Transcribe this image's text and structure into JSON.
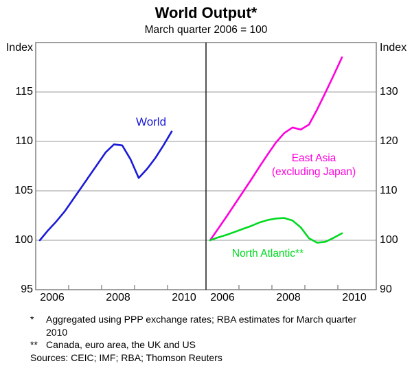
{
  "title": "World Output*",
  "subtitle": "March quarter 2006 = 100",
  "chart_data": {
    "type": "line",
    "title": "World Output*",
    "subtitle": "March quarter 2006 = 100",
    "x_note": "quarterly data, March quarter 2006 to March quarter 2010",
    "x_years": [
      2006.125,
      2006.375,
      2006.625,
      2006.875,
      2007.125,
      2007.375,
      2007.625,
      2007.875,
      2008.125,
      2008.375,
      2008.625,
      2008.875,
      2009.125,
      2009.375,
      2009.625,
      2009.875,
      2010.125
    ],
    "xlim": [
      2006,
      2011.17
    ],
    "grid": true,
    "year_ticks": [
      2007,
      2008,
      2009,
      2010
    ],
    "x_tick_labels": [
      "2006",
      "2008",
      "2010"
    ],
    "x_tick_label_positions": [
      2006.5,
      2008.5,
      2010.5
    ],
    "panels": [
      {
        "side": "left",
        "ylabel": "Index",
        "ylim": [
          95,
          120
        ],
        "yticks": [
          95,
          100,
          105,
          110,
          115
        ],
        "series": [
          {
            "name": "World",
            "slug": "world",
            "color": "#1a1ad9",
            "values": [
              100.0,
              101.0,
              101.9,
              102.9,
              104.1,
              105.3,
              106.5,
              107.7,
              108.9,
              109.7,
              109.6,
              108.2,
              106.3,
              107.2,
              108.3,
              109.6,
              111.0
            ]
          }
        ]
      },
      {
        "side": "right",
        "ylabel": "Index",
        "ylim": [
          90,
          140
        ],
        "yticks": [
          90,
          100,
          110,
          120,
          130
        ],
        "series": [
          {
            "name": "East Asia (excluding Japan)",
            "slug": "east-asia",
            "label_lines": [
              "East Asia",
              "(excluding Japan)"
            ],
            "color": "#ff00dd",
            "values": [
              100.0,
              102.4,
              104.8,
              107.3,
              109.8,
              112.3,
              114.9,
              117.4,
              119.8,
              121.7,
              122.8,
              122.4,
              123.4,
              126.5,
              129.9,
              133.4,
              137.0
            ]
          },
          {
            "name": "North Atlantic**",
            "slug": "north-atlantic",
            "color": "#00da20",
            "values": [
              100.0,
              100.6,
              101.1,
              101.7,
              102.3,
              102.9,
              103.6,
              104.1,
              104.4,
              104.5,
              104.0,
              102.6,
              100.4,
              99.5,
              99.7,
              100.5,
              101.4
            ]
          }
        ]
      }
    ]
  },
  "colors": {
    "gridline": "#9a9a9a",
    "frame": "#808080",
    "divider": "#1a1a1a",
    "text": "#000000"
  },
  "footnotes": {
    "fn1_marker": "*",
    "fn1_line1": "Aggregated using PPP exchange rates; RBA estimates for March quarter",
    "fn1_line2": "2010",
    "fn2_marker": "**",
    "fn2_text": "Canada, euro area, the UK and US",
    "sources": "Sources: CEIC; IMF; RBA; Thomson Reuters"
  }
}
